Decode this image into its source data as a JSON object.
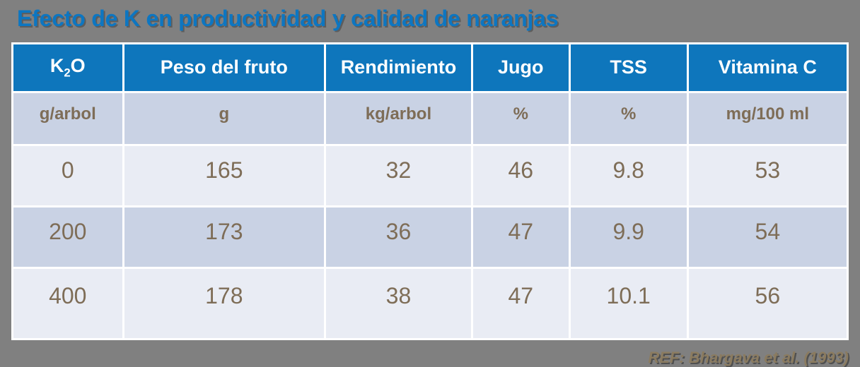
{
  "title": "Efecto de K en productividad y calidad de naranjas",
  "reference": "REF: Bhargava et al. (1993)",
  "colors": {
    "background": "#808080",
    "title_text": "#0D76C1",
    "header_bg": "#0E76BC",
    "header_text": "#FFFFFF",
    "row_dark_bg": "#C9D2E4",
    "row_light_bg": "#E9ECF4",
    "cell_text": "#7E6D57",
    "grid_border": "#FFFFFF",
    "reference_text": "#8B7B5F"
  },
  "chart_data": {
    "type": "table",
    "title": "Efecto de K en productividad y calidad de naranjas",
    "columns": [
      {
        "label": "K2O",
        "label_pre": "K",
        "label_sub": "2",
        "label_post": "O",
        "unit": "g/arbol"
      },
      {
        "label": "Peso del fruto",
        "unit": "g"
      },
      {
        "label": "Rendimiento",
        "unit": "kg/arbol"
      },
      {
        "label": "Jugo",
        "unit": "%"
      },
      {
        "label": "TSS",
        "unit": "%"
      },
      {
        "label": "Vitamina C",
        "unit": "mg/100 ml"
      }
    ],
    "rows": [
      [
        0,
        165,
        32,
        46,
        9.8,
        53
      ],
      [
        200,
        173,
        36,
        47,
        9.9,
        54
      ],
      [
        400,
        178,
        38,
        47,
        10.1,
        56
      ]
    ]
  }
}
